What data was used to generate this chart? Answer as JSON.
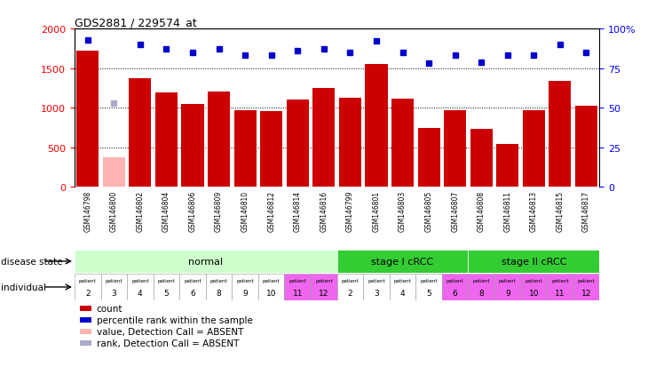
{
  "title": "GDS2881 / 229574_at",
  "samples": [
    "GSM146798",
    "GSM146800",
    "GSM146802",
    "GSM146804",
    "GSM146806",
    "GSM146809",
    "GSM146810",
    "GSM146812",
    "GSM146814",
    "GSM146816",
    "GSM146799",
    "GSM146801",
    "GSM146803",
    "GSM146805",
    "GSM146807",
    "GSM146808",
    "GSM146811",
    "GSM146813",
    "GSM146815",
    "GSM146817"
  ],
  "counts": [
    1720,
    370,
    1370,
    1190,
    1050,
    1200,
    970,
    960,
    1100,
    1250,
    1120,
    1555,
    1110,
    740,
    970,
    730,
    540,
    970,
    1340,
    1020
  ],
  "absent": [
    false,
    true,
    false,
    false,
    false,
    false,
    false,
    false,
    false,
    false,
    false,
    false,
    false,
    false,
    false,
    false,
    false,
    false,
    false,
    false
  ],
  "percentile_ranks": [
    93,
    53,
    90,
    87,
    85,
    87,
    83,
    83,
    86,
    87,
    85,
    92,
    85,
    78,
    83,
    79,
    83,
    83,
    90,
    85
  ],
  "absent_rank": [
    false,
    true,
    false,
    false,
    false,
    false,
    false,
    false,
    false,
    false,
    false,
    false,
    false,
    false,
    false,
    false,
    false,
    false,
    false,
    false
  ],
  "ylim_left": [
    0,
    2000
  ],
  "yticks_left": [
    0,
    500,
    1000,
    1500,
    2000
  ],
  "yticks_right": [
    0,
    25,
    50,
    75,
    100
  ],
  "yticklabels_right": [
    "0",
    "25",
    "50",
    "75",
    "100%"
  ],
  "bar_color_normal": "#cc0000",
  "bar_color_absent": "#ffb3b3",
  "dot_color_normal": "#0000cc",
  "dot_color_absent": "#aaaacc",
  "group_defs": [
    {
      "start": 0,
      "end": 10,
      "label": "normal",
      "color": "#ccffcc"
    },
    {
      "start": 10,
      "end": 15,
      "label": "stage I cRCC",
      "color": "#33cc33"
    },
    {
      "start": 15,
      "end": 20,
      "label": "stage II cRCC",
      "color": "#33cc33"
    }
  ],
  "patients": [
    "2",
    "3",
    "4",
    "5",
    "6",
    "8",
    "9",
    "10",
    "11",
    "12",
    "2",
    "3",
    "4",
    "5",
    "6",
    "8",
    "9",
    "10",
    "11",
    "12"
  ],
  "patient_colors": [
    "#ffffff",
    "#ffffff",
    "#ffffff",
    "#ffffff",
    "#ffffff",
    "#ffffff",
    "#ffffff",
    "#ffffff",
    "#ee66ee",
    "#ee66ee",
    "#ffffff",
    "#ffffff",
    "#ffffff",
    "#ffffff",
    "#ee66ee",
    "#ee66ee",
    "#ee66ee",
    "#ee66ee",
    "#ee66ee",
    "#ee66ee"
  ],
  "legend_labels": [
    "count",
    "percentile rank within the sample",
    "value, Detection Call = ABSENT",
    "rank, Detection Call = ABSENT"
  ],
  "legend_colors": [
    "#cc0000",
    "#0000cc",
    "#ffb3b3",
    "#aaaacc"
  ],
  "bar_width": 0.85
}
